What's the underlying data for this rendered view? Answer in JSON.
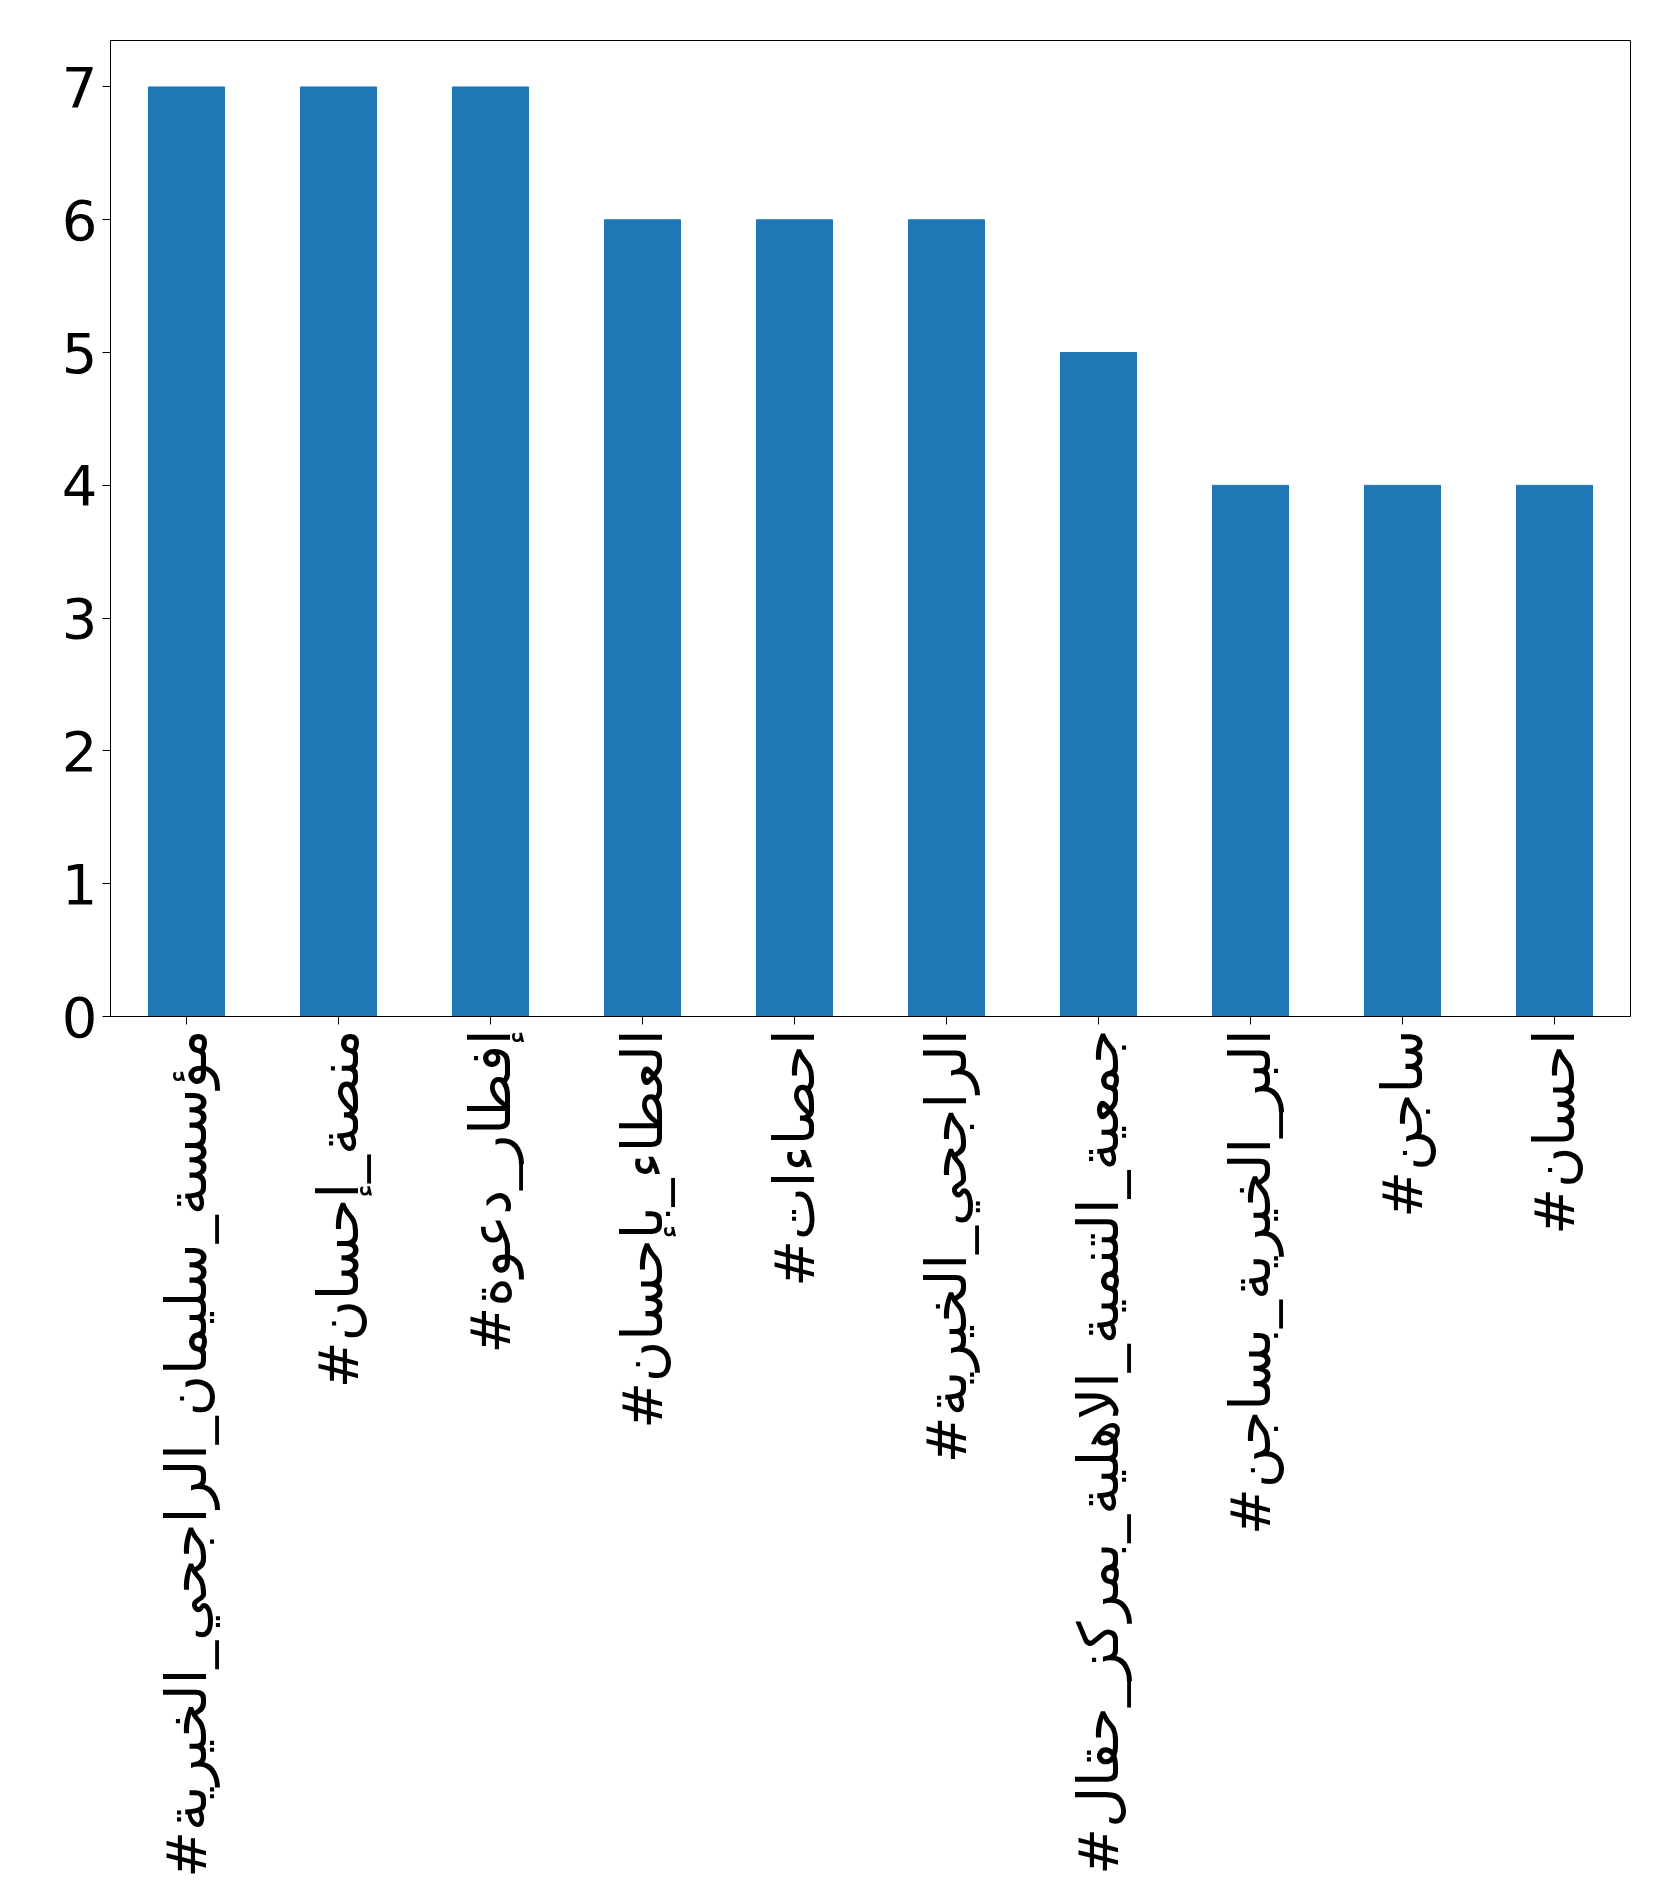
{
  "chart_data": {
    "type": "bar",
    "categories": [
      "#مؤسسة_سليمان_الراجحي_الخيرية",
      "#منصة_إحسان",
      "#إفطار_دعوة",
      "#العطاء_بإحسان",
      "#احصاءات",
      "#الراجحي_الخيرية",
      "#جمعية_التنمية_الاهلية_بمركز_حقال",
      "#البر_الخيرية_بساجن",
      "#ساجن",
      "#احسان"
    ],
    "values": [
      7,
      7,
      7,
      6,
      6,
      6,
      5,
      4,
      4,
      4
    ],
    "color": "#1f77b4",
    "ylim": [
      0,
      7.35
    ],
    "yticks": [
      0,
      1,
      2,
      3,
      4,
      5,
      6,
      7
    ],
    "grid": false
  }
}
